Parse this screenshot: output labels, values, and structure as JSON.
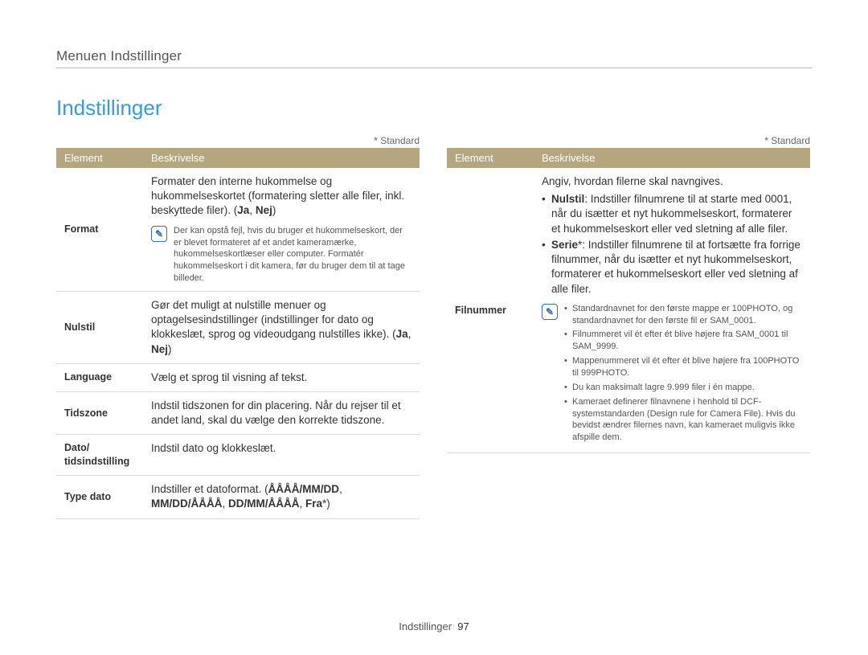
{
  "colors": {
    "title": "#3a9bd9",
    "header_bg": "#b4a67f",
    "header_text": "#ffffff",
    "border": "#d9d9d9",
    "note_icon": "#3a6fa8",
    "text": "#333333",
    "note_text": "#555555",
    "background": "#ffffff"
  },
  "breadcrumb": "Menuen Indstillinger",
  "title": "Indstillinger",
  "standard_label": "* Standard",
  "table_headers": {
    "element": "Element",
    "description": "Beskrivelse"
  },
  "note_icon_glyph": "✎",
  "left_rows": [
    {
      "element": "Format",
      "desc_prefix": "Formater den interne hukommelse og hukommelseskortet (formatering sletter alle filer, inkl. beskyttede filer). (",
      "desc_bold": "Ja",
      "desc_sep": ", ",
      "desc_bold2": "Nej",
      "desc_suffix": ")",
      "note": "Der kan opstå fejl, hvis du bruger et hukommelseskort, der er blevet formateret af et andet kameramærke, hukommelseskortlæser eller computer. Formatér hukommelseskort i dit kamera, før du bruger dem til at tage billeder."
    },
    {
      "element": "Nulstil",
      "desc_prefix": "Gør det muligt at nulstille menuer og optagelsesindstillinger (indstillinger for dato og klokkeslæt, sprog og videoudgang nulstilles ikke). (",
      "desc_bold": "Ja",
      "desc_sep": ", ",
      "desc_bold2": "Nej",
      "desc_suffix": ")"
    },
    {
      "element": "Language",
      "desc_plain": "Vælg et sprog til visning af tekst."
    },
    {
      "element": "Tidszone",
      "desc_plain": "Indstil tidszonen for din placering. Når du rejser til et andet land, skal du vælge den korrekte tidszone."
    },
    {
      "element": "Dato/\ntidsindstilling",
      "desc_plain": "Indstil dato og klokkeslæt."
    },
    {
      "element": "Type dato",
      "desc_prefix": "Indstiller et datoformat. (",
      "desc_bold": "ÅÅÅÅ/MM/DD",
      "desc_sep": ", ",
      "desc_bold_line2": "MM/DD/ÅÅÅÅ",
      "desc_sep2": ", ",
      "desc_bold3": "DD/MM/ÅÅÅÅ",
      "desc_sep3": ", ",
      "desc_bold4": "Fra",
      "desc_suffix": "*)"
    }
  ],
  "right_rows": [
    {
      "element": "Filnummer",
      "intro": "Angiv, hvordan filerne skal navngives.",
      "bullets": [
        {
          "label": "Nulstil",
          "text": ": Indstiller filnumrene til at starte med 0001, når du isætter et nyt hukommelseskort, formaterer et hukommelseskort eller ved sletning af alle filer."
        },
        {
          "label": "Serie",
          "star": "*",
          "text": ": Indstiller filnumrene til at fortsætte fra forrige filnummer, når du isætter et nyt hukommelseskort, formaterer et hukommelseskort eller ved sletning af alle filer."
        }
      ],
      "note_bullets": [
        "Standardnavnet for den første mappe er 100PHOTO, og standardnavnet for den første fil er SAM_0001.",
        "Filnummeret vil ét efter ét blive højere fra SAM_0001 til SAM_9999.",
        "Mappenummeret vil ét efter ét blive højere fra 100PHOTO til 999PHOTO.",
        "Du kan maksimalt lagre 9.999 filer i én mappe.",
        "Kameraet definerer filnavnene i henhold til DCF-systemstandarden (Design rule for Camera File). Hvis du bevidst ændrer filernes navn, kan kameraet muligvis ikke afspille dem."
      ]
    }
  ],
  "footer": {
    "section": "Indstillinger",
    "page": "97"
  }
}
